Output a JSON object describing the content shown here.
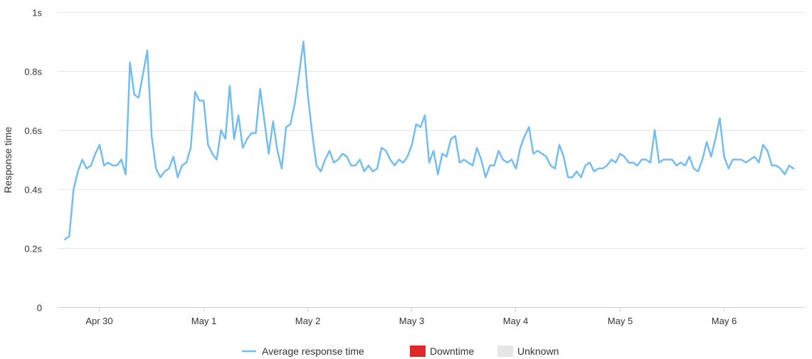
{
  "chart_data": {
    "type": "line",
    "ylabel": "Response time",
    "ylim": [
      0,
      1
    ],
    "yticks": [
      {
        "value": 0,
        "label": "0"
      },
      {
        "value": 0.2,
        "label": "0.2s"
      },
      {
        "value": 0.4,
        "label": "0.4s"
      },
      {
        "value": 0.6,
        "label": "0.6s"
      },
      {
        "value": 0.8,
        "label": "0.8s"
      },
      {
        "value": 1,
        "label": "1s"
      }
    ],
    "xlim": [
      -0.4,
      6.78
    ],
    "xticks": [
      {
        "value": 0,
        "label": "Apr 30"
      },
      {
        "value": 1,
        "label": "May 1"
      },
      {
        "value": 2,
        "label": "May 2"
      },
      {
        "value": 3,
        "label": "May 3"
      },
      {
        "value": 4,
        "label": "May 4"
      },
      {
        "value": 5,
        "label": "May 5"
      },
      {
        "value": 6,
        "label": "May 6"
      }
    ],
    "grid": true,
    "legend_position": "bottom-center",
    "legend": [
      {
        "label": "Average response time",
        "color": "#74bdf1",
        "marker": "line"
      },
      {
        "label": "Downtime",
        "color": "#e0282b",
        "marker": "box"
      },
      {
        "label": "Unknown",
        "color": "#e6e6e6",
        "marker": "box"
      }
    ],
    "series": [
      {
        "name": "Average response time",
        "color": "#74bdf1",
        "x_start": -0.33,
        "x_step": 0.04167,
        "values": [
          0.23,
          0.24,
          0.4,
          0.46,
          0.5,
          0.47,
          0.48,
          0.52,
          0.55,
          0.48,
          0.49,
          0.48,
          0.48,
          0.5,
          0.45,
          0.83,
          0.72,
          0.71,
          0.79,
          0.87,
          0.58,
          0.47,
          0.44,
          0.46,
          0.47,
          0.51,
          0.44,
          0.48,
          0.49,
          0.54,
          0.73,
          0.7,
          0.7,
          0.55,
          0.52,
          0.5,
          0.6,
          0.57,
          0.75,
          0.57,
          0.65,
          0.54,
          0.57,
          0.59,
          0.59,
          0.74,
          0.63,
          0.52,
          0.63,
          0.53,
          0.47,
          0.61,
          0.62,
          0.69,
          0.79,
          0.9,
          0.72,
          0.59,
          0.48,
          0.46,
          0.5,
          0.53,
          0.49,
          0.5,
          0.52,
          0.51,
          0.48,
          0.48,
          0.5,
          0.46,
          0.48,
          0.46,
          0.47,
          0.54,
          0.53,
          0.5,
          0.48,
          0.5,
          0.49,
          0.51,
          0.55,
          0.62,
          0.61,
          0.65,
          0.49,
          0.53,
          0.45,
          0.52,
          0.51,
          0.57,
          0.58,
          0.49,
          0.5,
          0.49,
          0.48,
          0.54,
          0.5,
          0.44,
          0.48,
          0.48,
          0.53,
          0.5,
          0.49,
          0.5,
          0.47,
          0.54,
          0.58,
          0.61,
          0.52,
          0.53,
          0.52,
          0.51,
          0.48,
          0.47,
          0.55,
          0.51,
          0.44,
          0.44,
          0.46,
          0.44,
          0.48,
          0.49,
          0.46,
          0.47,
          0.47,
          0.48,
          0.5,
          0.49,
          0.52,
          0.51,
          0.49,
          0.49,
          0.48,
          0.5,
          0.5,
          0.49,
          0.6,
          0.49,
          0.5,
          0.5,
          0.5,
          0.48,
          0.49,
          0.48,
          0.51,
          0.47,
          0.46,
          0.5,
          0.56,
          0.51,
          0.57,
          0.64,
          0.51,
          0.47,
          0.5,
          0.5,
          0.5,
          0.49,
          0.5,
          0.51,
          0.49,
          0.55,
          0.53,
          0.48,
          0.48,
          0.47,
          0.45,
          0.48,
          0.47
        ]
      }
    ]
  }
}
